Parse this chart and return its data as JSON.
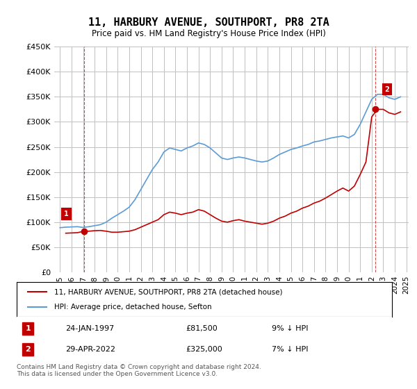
{
  "title": "11, HARBURY AVENUE, SOUTHPORT, PR8 2TA",
  "subtitle": "Price paid vs. HM Land Registry's House Price Index (HPI)",
  "ylabel": "",
  "ylim": [
    0,
    450000
  ],
  "yticks": [
    0,
    50000,
    100000,
    150000,
    200000,
    250000,
    300000,
    350000,
    400000,
    450000
  ],
  "ytick_labels": [
    "£0",
    "£50K",
    "£100K",
    "£150K",
    "£200K",
    "£250K",
    "£300K",
    "£350K",
    "£400K",
    "£450K"
  ],
  "hpi_color": "#5b9bd5",
  "price_color": "#c00000",
  "annotation_box_color": "#c00000",
  "grid_color": "#c0c0c0",
  "background_color": "#ffffff",
  "legend_label_price": "11, HARBURY AVENUE, SOUTHPORT, PR8 2TA (detached house)",
  "legend_label_hpi": "HPI: Average price, detached house, Sefton",
  "sale1_label": "1",
  "sale1_date": "24-JAN-1997",
  "sale1_price": "£81,500",
  "sale1_hpi": "9% ↓ HPI",
  "sale2_label": "2",
  "sale2_date": "29-APR-2022",
  "sale2_price": "£325,000",
  "sale2_hpi": "7% ↓ HPI",
  "footer": "Contains HM Land Registry data © Crown copyright and database right 2024.\nThis data is licensed under the Open Government Licence v3.0.",
  "sale1_year": 1997.07,
  "sale1_value": 81500,
  "sale2_year": 2022.33,
  "sale2_value": 325000,
  "hpi_years": [
    1995.0,
    1995.5,
    1996.0,
    1996.5,
    1997.0,
    1997.5,
    1998.0,
    1998.5,
    1999.0,
    1999.5,
    2000.0,
    2000.5,
    2001.0,
    2001.5,
    2002.0,
    2002.5,
    2003.0,
    2003.5,
    2004.0,
    2004.5,
    2005.0,
    2005.5,
    2006.0,
    2006.5,
    2007.0,
    2007.5,
    2008.0,
    2008.5,
    2009.0,
    2009.5,
    2010.0,
    2010.5,
    2011.0,
    2011.5,
    2012.0,
    2012.5,
    2013.0,
    2013.5,
    2014.0,
    2014.5,
    2015.0,
    2015.5,
    2016.0,
    2016.5,
    2017.0,
    2017.5,
    2018.0,
    2018.5,
    2019.0,
    2019.5,
    2020.0,
    2020.5,
    2021.0,
    2021.5,
    2022.0,
    2022.5,
    2023.0,
    2023.5,
    2024.0,
    2024.5
  ],
  "hpi_values": [
    89000,
    90000,
    90500,
    91000,
    89500,
    91000,
    93000,
    95000,
    100000,
    108000,
    115000,
    122000,
    130000,
    145000,
    165000,
    185000,
    205000,
    220000,
    240000,
    248000,
    245000,
    242000,
    248000,
    252000,
    258000,
    255000,
    248000,
    238000,
    228000,
    225000,
    228000,
    230000,
    228000,
    225000,
    222000,
    220000,
    222000,
    228000,
    235000,
    240000,
    245000,
    248000,
    252000,
    255000,
    260000,
    262000,
    265000,
    268000,
    270000,
    272000,
    268000,
    275000,
    295000,
    320000,
    345000,
    355000,
    355000,
    348000,
    345000,
    350000
  ],
  "price_years": [
    1995.5,
    1996.0,
    1996.5,
    1997.0,
    1997.5,
    1998.0,
    1998.5,
    1999.0,
    1999.5,
    2000.0,
    2000.5,
    2001.0,
    2001.5,
    2002.0,
    2002.5,
    2003.0,
    2003.5,
    2004.0,
    2004.5,
    2005.0,
    2005.5,
    2006.0,
    2006.5,
    2007.0,
    2007.5,
    2008.0,
    2008.5,
    2009.0,
    2009.5,
    2010.0,
    2010.5,
    2011.0,
    2011.5,
    2012.0,
    2012.5,
    2013.0,
    2013.5,
    2014.0,
    2014.5,
    2015.0,
    2015.5,
    2016.0,
    2016.5,
    2017.0,
    2017.5,
    2018.0,
    2018.5,
    2019.0,
    2019.5,
    2020.0,
    2020.5,
    2021.0,
    2021.5,
    2022.0,
    2022.5,
    2023.0,
    2023.5,
    2024.0,
    2024.5
  ],
  "price_values": [
    78000,
    78500,
    79000,
    81500,
    82000,
    83000,
    83500,
    82000,
    80000,
    80000,
    81000,
    82000,
    85000,
    90000,
    95000,
    100000,
    105000,
    115000,
    120000,
    118000,
    115000,
    118000,
    120000,
    125000,
    122000,
    115000,
    108000,
    102000,
    100000,
    103000,
    105000,
    102000,
    100000,
    98000,
    96000,
    98000,
    102000,
    108000,
    112000,
    118000,
    122000,
    128000,
    132000,
    138000,
    142000,
    148000,
    155000,
    162000,
    168000,
    162000,
    172000,
    195000,
    220000,
    310000,
    325000,
    325000,
    318000,
    315000,
    320000
  ],
  "xtick_years": [
    1995,
    1996,
    1997,
    1998,
    1999,
    2000,
    2001,
    2002,
    2003,
    2004,
    2005,
    2006,
    2007,
    2008,
    2009,
    2010,
    2011,
    2012,
    2013,
    2014,
    2015,
    2016,
    2017,
    2018,
    2019,
    2020,
    2021,
    2022,
    2023,
    2024,
    2025
  ]
}
